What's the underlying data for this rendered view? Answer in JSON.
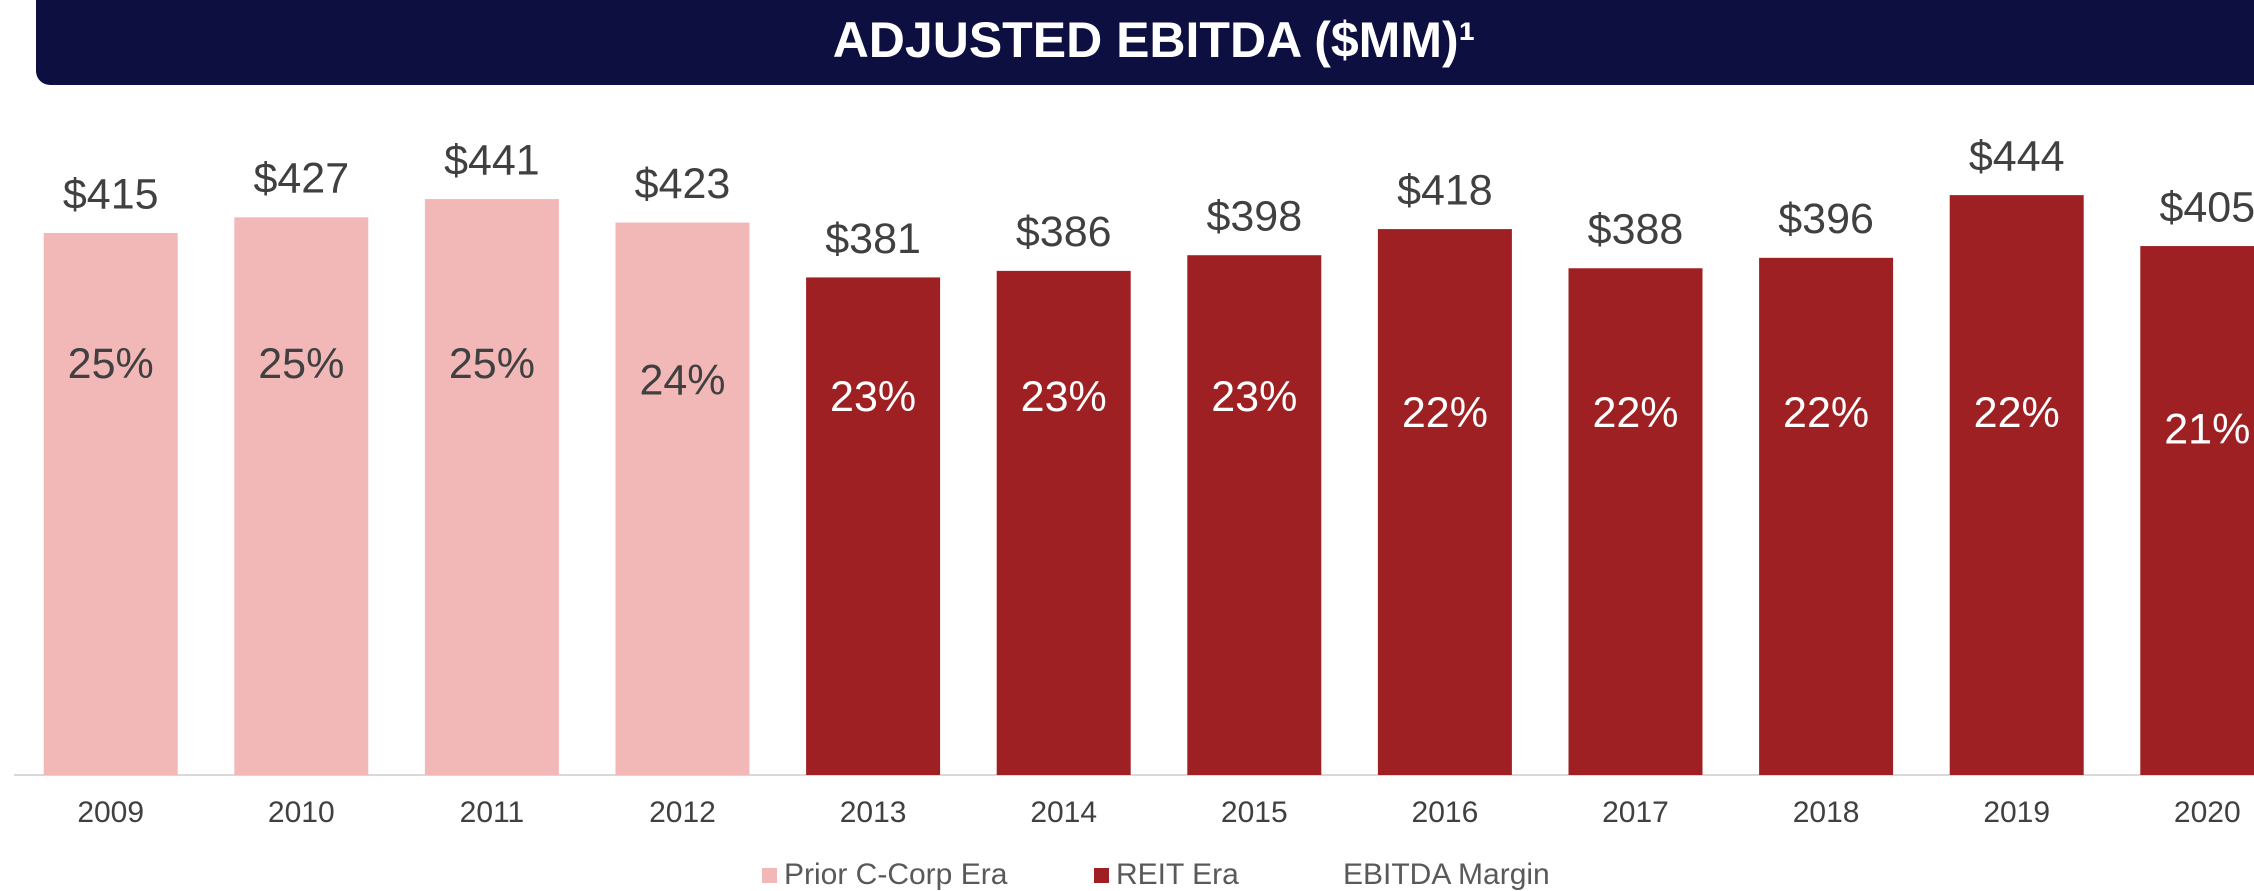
{
  "chart_data": {
    "type": "bar",
    "title": "ADJUSTED EBITDA ($MM)¹",
    "categories": [
      "2009",
      "2010",
      "2011",
      "2012",
      "2013",
      "2014",
      "2015",
      "2016",
      "2017",
      "2018",
      "2019",
      "2020"
    ],
    "series": [
      {
        "name": "Prior C-Corp Era",
        "color": "#f2b8b8",
        "values": [
          415,
          427,
          441,
          423,
          null,
          null,
          null,
          null,
          null,
          null,
          null,
          null
        ],
        "value_labels": [
          "$415",
          "$427",
          "$441",
          "$423",
          null,
          null,
          null,
          null,
          null,
          null,
          null,
          null
        ]
      },
      {
        "name": "REIT Era",
        "color": "#9e2022",
        "values": [
          null,
          null,
          null,
          null,
          381,
          386,
          398,
          418,
          388,
          396,
          444,
          405
        ],
        "value_labels": [
          null,
          null,
          null,
          null,
          "$381",
          "$386",
          "$398",
          "$418",
          "$388",
          "$396",
          "$444",
          "$405"
        ]
      },
      {
        "name": "EBITDA Margin",
        "axis": "y2",
        "values": [
          25,
          25,
          25,
          24,
          23,
          23,
          23,
          22,
          22,
          22,
          22,
          21
        ],
        "value_labels": [
          "25%",
          "25%",
          "25%",
          "24%",
          "23%",
          "23%",
          "23%",
          "22%",
          "22%",
          "22%",
          "22%",
          "21%"
        ]
      }
    ],
    "ylim": [
      0,
      500
    ],
    "y2lim": [
      0,
      40
    ],
    "grid": false
  }
}
